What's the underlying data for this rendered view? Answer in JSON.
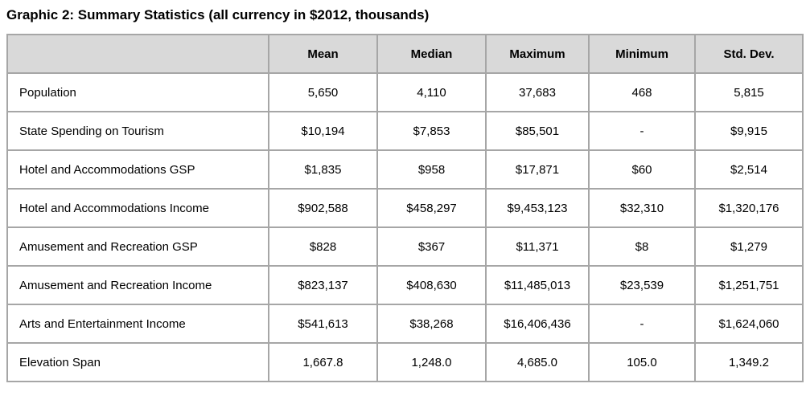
{
  "title": "Graphic 2: Summary Statistics (all currency in $2012, thousands)",
  "colors": {
    "header_background": "#d9d9d9",
    "grid_border": "#a6a6a6",
    "text": "#000000",
    "page_background": "#ffffff"
  },
  "table": {
    "columns": [
      "",
      "Mean",
      "Median",
      "Maximum",
      "Minimum",
      "Std. Dev."
    ],
    "rows": [
      {
        "label": "Population",
        "values": [
          "5,650",
          "4,110",
          "37,683",
          "468",
          "5,815"
        ]
      },
      {
        "label": "State Spending on Tourism",
        "values": [
          "$10,194",
          "$7,853",
          "$85,501",
          "-",
          "$9,915"
        ]
      },
      {
        "label": "Hotel and Accommodations GSP",
        "values": [
          "$1,835",
          "$958",
          "$17,871",
          "$60",
          "$2,514"
        ]
      },
      {
        "label": "Hotel and Accommodations Income",
        "values": [
          "$902,588",
          "$458,297",
          "$9,453,123",
          "$32,310",
          "$1,320,176"
        ]
      },
      {
        "label": "Amusement and Recreation GSP",
        "values": [
          "$828",
          "$367",
          "$11,371",
          "$8",
          "$1,279"
        ]
      },
      {
        "label": "Amusement and Recreation Income",
        "values": [
          "$823,137",
          "$408,630",
          "$11,485,013",
          "$23,539",
          "$1,251,751"
        ]
      },
      {
        "label": "Arts and Entertainment Income",
        "values": [
          "$541,613",
          "$38,268",
          "$16,406,436",
          "-",
          "$1,624,060"
        ]
      },
      {
        "label": "Elevation Span",
        "values": [
          "1,667.8",
          "1,248.0",
          "4,685.0",
          "105.0",
          "1,349.2"
        ]
      }
    ]
  }
}
